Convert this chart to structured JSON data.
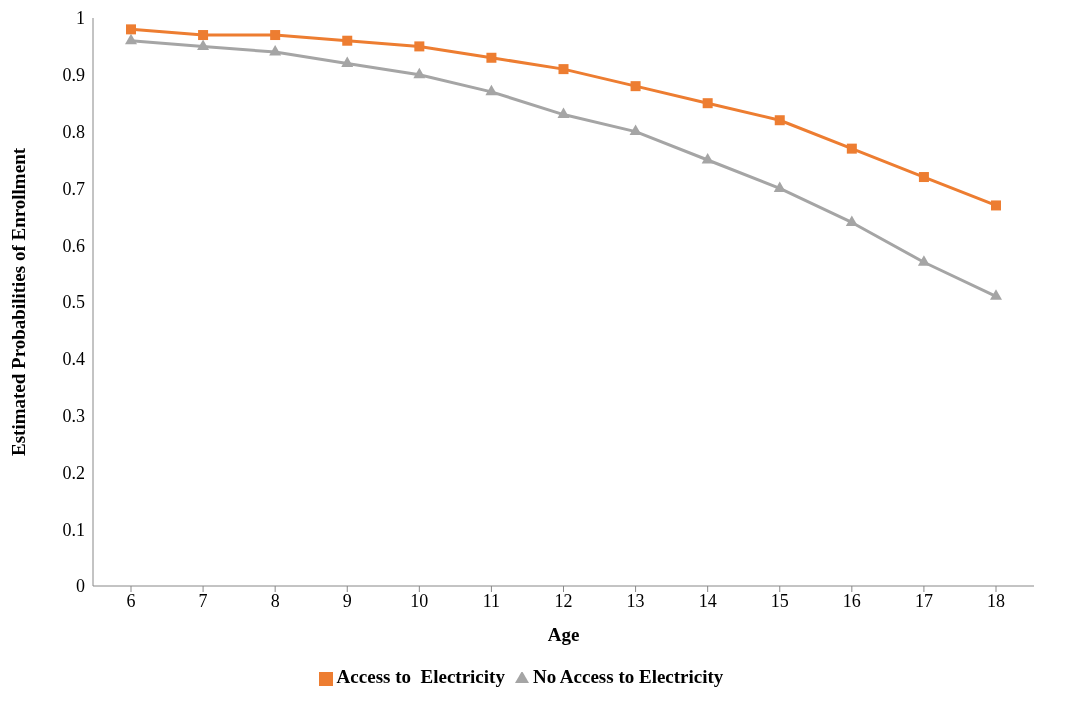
{
  "chart_data": {
    "type": "line",
    "xlabel": "Age",
    "ylabel": "Estimated Probabilities of Enrollment",
    "categories": [
      "6",
      "7",
      "8",
      "9",
      "10",
      "11",
      "12",
      "13",
      "14",
      "15",
      "16",
      "17",
      "18"
    ],
    "series": [
      {
        "name": "Access to  Electricity",
        "color": "#ed7d31",
        "marker": "square",
        "values": [
          0.98,
          0.97,
          0.97,
          0.96,
          0.95,
          0.93,
          0.91,
          0.88,
          0.85,
          0.82,
          0.77,
          0.72,
          0.67
        ]
      },
      {
        "name": "No Access to Electricity",
        "color": "#a5a5a5",
        "marker": "triangle",
        "values": [
          0.96,
          0.95,
          0.94,
          0.92,
          0.9,
          0.87,
          0.83,
          0.8,
          0.75,
          0.7,
          0.64,
          0.57,
          0.51
        ]
      }
    ],
    "ylim": [
      0,
      1
    ],
    "yticks": [
      0,
      0.1,
      0.2,
      0.3,
      0.4,
      0.5,
      0.6,
      0.7,
      0.8,
      0.9,
      1
    ],
    "grid": false,
    "legend": "bottom",
    "line_style": "solid"
  }
}
